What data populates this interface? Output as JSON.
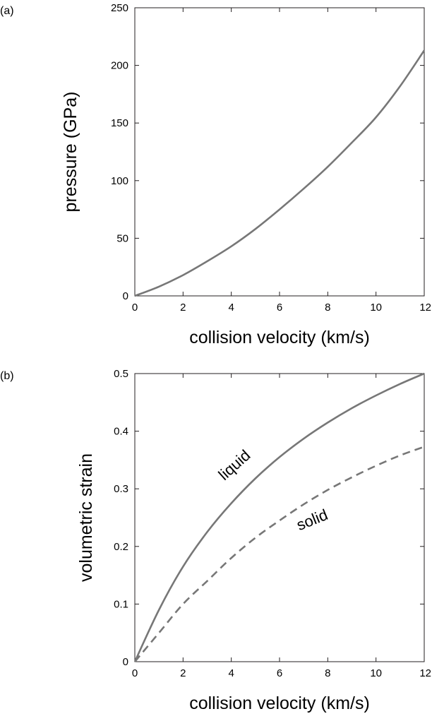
{
  "chart_data": [
    {
      "panel": "(a)",
      "type": "line",
      "title": "",
      "xlabel": "collision velocity (km/s)",
      "ylabel": "pressure (GPa)",
      "xlim": [
        0,
        12
      ],
      "ylim": [
        0,
        250
      ],
      "xticks": [
        0,
        2,
        4,
        6,
        8,
        10,
        12
      ],
      "yticks": [
        0,
        50,
        100,
        150,
        200,
        250
      ],
      "grid": false,
      "series": [
        {
          "style": "solid",
          "color": "#777777",
          "x": [
            0,
            1,
            2,
            3,
            4,
            5,
            6,
            7,
            8,
            9,
            10,
            11,
            12
          ],
          "y": [
            0,
            8,
            18,
            30,
            43,
            58,
            75,
            93,
            112,
            133,
            155,
            182,
            213
          ]
        }
      ]
    },
    {
      "panel": "(b)",
      "type": "line",
      "title": "",
      "xlabel": "collision velocity (km/s)",
      "ylabel": "volumetric strain",
      "xlim": [
        0,
        12
      ],
      "ylim": [
        0,
        0.5
      ],
      "xticks": [
        0,
        2,
        4,
        6,
        8,
        10,
        12
      ],
      "yticks": [
        0,
        0.1,
        0.2,
        0.3,
        0.4,
        0.5
      ],
      "grid": false,
      "series": [
        {
          "name": "liquid",
          "style": "solid",
          "color": "#777777",
          "x": [
            0,
            1,
            2,
            3,
            4,
            5,
            6,
            7,
            8,
            9,
            10,
            11,
            12
          ],
          "y": [
            0,
            0.09,
            0.165,
            0.225,
            0.275,
            0.318,
            0.355,
            0.387,
            0.415,
            0.44,
            0.462,
            0.482,
            0.5
          ]
        },
        {
          "name": "solid",
          "style": "dashed",
          "color": "#777777",
          "x": [
            0,
            1,
            2,
            3,
            4,
            5,
            6,
            7,
            8,
            9,
            10,
            11,
            12
          ],
          "y": [
            0,
            0.05,
            0.1,
            0.14,
            0.18,
            0.215,
            0.245,
            0.273,
            0.298,
            0.32,
            0.34,
            0.358,
            0.373
          ]
        }
      ],
      "annotations": [
        "liquid",
        "solid"
      ]
    }
  ]
}
